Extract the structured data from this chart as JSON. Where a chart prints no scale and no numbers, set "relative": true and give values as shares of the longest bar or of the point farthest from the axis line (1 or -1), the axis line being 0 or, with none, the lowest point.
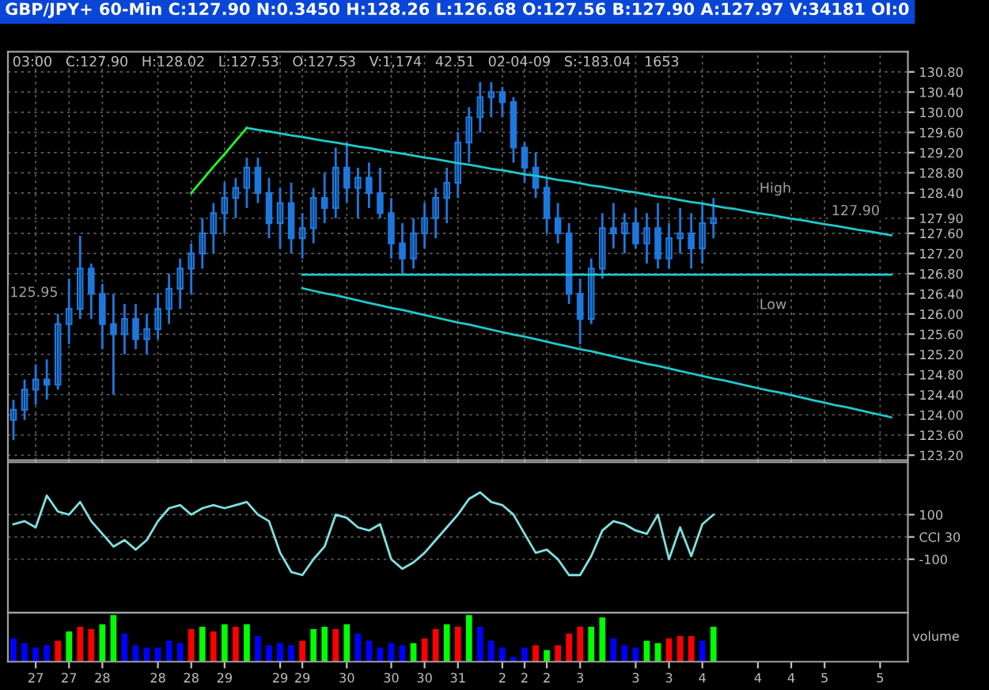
{
  "chart_data": [
    {
      "type": "candlestick",
      "title": "GBP/JPY+ 60-Min C:127.90 N:0.3450 H:128.26 L:126.68 O:127.56 B:127.90 A:127.97 V:34181 OI:0",
      "subtitle": "03:00   C:127.90   H:128.02   L:127.53   O:127.53   V:1,174   42.51   02-04-09   S:-183.04   1653",
      "categories": [
        null,
        null,
        "27",
        null,
        null,
        "27",
        null,
        null,
        "28",
        null,
        null,
        null,
        null,
        "28",
        null,
        null,
        "28",
        null,
        null,
        "29",
        null,
        null,
        null,
        null,
        "29",
        null,
        "29",
        null,
        null,
        null,
        "30",
        null,
        null,
        null,
        "30",
        null,
        null,
        "30",
        null,
        null,
        "31",
        null,
        null,
        null,
        "2",
        null,
        "2",
        null,
        "2",
        null,
        null,
        "3",
        null,
        null,
        null,
        null,
        "3",
        null,
        null,
        "3",
        null,
        null,
        "4",
        null,
        null,
        null,
        null,
        "4",
        null,
        null,
        "4",
        null,
        null,
        "5",
        null,
        null,
        null,
        null,
        "5",
        null,
        null
      ],
      "color": "#1e78dc",
      "ohlc": [
        [
          123.9,
          124.3,
          123.5,
          124.1
        ],
        [
          124.1,
          124.7,
          123.9,
          124.5
        ],
        [
          124.5,
          125.0,
          124.2,
          124.7
        ],
        [
          124.7,
          125.1,
          124.3,
          124.6
        ],
        [
          124.6,
          126.0,
          124.5,
          125.8
        ],
        [
          125.8,
          126.7,
          125.4,
          126.1
        ],
        [
          126.1,
          127.55,
          125.9,
          126.9
        ],
        [
          126.9,
          127.0,
          125.9,
          126.4
        ],
        [
          126.4,
          126.6,
          125.3,
          125.8
        ],
        [
          125.8,
          126.4,
          124.4,
          125.6
        ],
        [
          125.6,
          126.2,
          125.2,
          125.9
        ],
        [
          125.9,
          126.2,
          125.3,
          125.5
        ],
        [
          125.5,
          126.0,
          125.2,
          125.7
        ],
        [
          125.7,
          126.4,
          125.5,
          126.1
        ],
        [
          126.1,
          126.8,
          125.8,
          126.5
        ],
        [
          126.5,
          127.1,
          126.1,
          126.9
        ],
        [
          126.9,
          127.4,
          126.4,
          127.2
        ],
        [
          127.2,
          127.9,
          126.9,
          127.6
        ],
        [
          127.6,
          128.2,
          127.2,
          128.0
        ],
        [
          128.0,
          128.6,
          127.6,
          128.3
        ],
        [
          128.3,
          128.7,
          127.9,
          128.5
        ],
        [
          128.5,
          129.1,
          128.1,
          128.9
        ],
        [
          128.9,
          129.1,
          128.2,
          128.4
        ],
        [
          128.4,
          128.7,
          127.5,
          127.8
        ],
        [
          127.8,
          128.5,
          127.3,
          128.2
        ],
        [
          128.2,
          128.6,
          127.2,
          127.5
        ],
        [
          127.5,
          128.0,
          127.1,
          127.7
        ],
        [
          127.7,
          128.5,
          127.4,
          128.3
        ],
        [
          128.3,
          128.8,
          127.8,
          128.1
        ],
        [
          128.1,
          129.3,
          127.9,
          128.9
        ],
        [
          128.9,
          129.4,
          128.2,
          128.5
        ],
        [
          128.5,
          128.9,
          127.9,
          128.7
        ],
        [
          128.7,
          129.0,
          128.1,
          128.4
        ],
        [
          128.4,
          128.9,
          127.9,
          128.0
        ],
        [
          128.0,
          128.3,
          127.1,
          127.4
        ],
        [
          127.4,
          127.8,
          126.8,
          127.1
        ],
        [
          127.1,
          127.9,
          126.9,
          127.6
        ],
        [
          127.6,
          128.2,
          127.3,
          127.9
        ],
        [
          127.9,
          128.5,
          127.5,
          128.3
        ],
        [
          128.3,
          128.9,
          127.8,
          128.6
        ],
        [
          128.6,
          129.6,
          128.3,
          129.4
        ],
        [
          129.4,
          130.1,
          129.0,
          129.9
        ],
        [
          129.9,
          130.6,
          129.6,
          130.3
        ],
        [
          130.3,
          130.6,
          129.9,
          130.4
        ],
        [
          130.4,
          130.5,
          129.9,
          130.2
        ],
        [
          130.2,
          130.3,
          129.0,
          129.3
        ],
        [
          129.3,
          129.4,
          128.6,
          128.9
        ],
        [
          128.9,
          129.2,
          128.3,
          128.5
        ],
        [
          128.5,
          128.7,
          127.6,
          127.9
        ],
        [
          127.9,
          128.2,
          127.4,
          127.6
        ],
        [
          127.6,
          127.8,
          126.2,
          126.4
        ],
        [
          126.4,
          126.7,
          125.4,
          125.9
        ],
        [
          125.9,
          127.1,
          125.8,
          126.9
        ],
        [
          126.9,
          128.0,
          126.7,
          127.7
        ],
        [
          127.7,
          128.2,
          127.3,
          127.6
        ],
        [
          127.6,
          128.0,
          127.2,
          127.8
        ],
        [
          127.8,
          128.1,
          127.3,
          127.4
        ],
        [
          127.4,
          128.0,
          127.0,
          127.7
        ],
        [
          127.7,
          128.2,
          126.9,
          127.1
        ],
        [
          127.1,
          127.8,
          126.9,
          127.5
        ],
        [
          127.5,
          128.1,
          127.2,
          127.6
        ],
        [
          127.6,
          128.0,
          126.9,
          127.3
        ],
        [
          127.3,
          128.2,
          127.0,
          127.8
        ],
        [
          127.8,
          128.3,
          127.5,
          127.9
        ],
        null,
        null,
        null,
        null,
        null,
        null,
        null,
        null,
        null,
        null,
        null,
        null,
        null,
        null,
        null,
        null,
        null
      ],
      "series": [
        {
          "type": "line",
          "color": "#20c8c8",
          "values": [
            null,
            null,
            null,
            null,
            null,
            null,
            null,
            null,
            null,
            null,
            null,
            null,
            null,
            null,
            null,
            null,
            null,
            null,
            null,
            null,
            null,
            129.69,
            129.65,
            129.62,
            129.58,
            129.54,
            129.51,
            129.47,
            129.43,
            129.4,
            129.36,
            129.32,
            129.29,
            129.25,
            129.21,
            129.18,
            129.14,
            129.1,
            129.07,
            129.03,
            128.99,
            128.96,
            128.92,
            128.88,
            128.85,
            128.81,
            128.77,
            128.74,
            128.7,
            128.66,
            128.63,
            128.59,
            128.55,
            128.52,
            128.48,
            128.44,
            128.41,
            128.37,
            128.33,
            128.3,
            128.26,
            128.22,
            128.19,
            128.15,
            128.11,
            128.08,
            128.04,
            128.0,
            127.97,
            127.93,
            127.89,
            127.86,
            127.82,
            127.78,
            127.75,
            127.71,
            127.67,
            127.64,
            127.6,
            127.56,
            null
          ]
        },
        {
          "type": "line",
          "color": "#20c8c8",
          "values": [
            null,
            null,
            null,
            null,
            null,
            null,
            null,
            null,
            null,
            null,
            null,
            null,
            null,
            null,
            null,
            null,
            null,
            null,
            null,
            null,
            null,
            null,
            null,
            null,
            null,
            null,
            126.51,
            126.46,
            126.41,
            126.37,
            126.32,
            126.27,
            126.22,
            126.17,
            126.12,
            126.08,
            126.03,
            125.98,
            125.93,
            125.88,
            125.83,
            125.79,
            125.74,
            125.69,
            125.64,
            125.59,
            125.55,
            125.5,
            125.45,
            125.4,
            125.35,
            125.3,
            125.26,
            125.21,
            125.16,
            125.11,
            125.06,
            125.01,
            124.97,
            124.92,
            124.87,
            124.82,
            124.77,
            124.72,
            124.68,
            124.63,
            124.58,
            124.53,
            124.48,
            124.44,
            124.39,
            124.34,
            124.29,
            124.24,
            124.19,
            124.15,
            124.1,
            124.05,
            124.0,
            123.95,
            null
          ]
        },
        {
          "type": "line",
          "color": "#20c8c8",
          "values": [
            null,
            null,
            null,
            null,
            null,
            null,
            null,
            null,
            null,
            null,
            null,
            null,
            null,
            null,
            null,
            null,
            null,
            null,
            null,
            null,
            null,
            null,
            null,
            null,
            null,
            null,
            126.78,
            126.78,
            126.78,
            126.78,
            126.78,
            126.78,
            126.78,
            126.78,
            126.78,
            126.78,
            126.78,
            126.78,
            126.78,
            126.78,
            126.78,
            126.78,
            126.78,
            126.78,
            126.78,
            126.78,
            126.78,
            126.78,
            126.78,
            126.78,
            126.78,
            126.78,
            126.78,
            126.78,
            126.78,
            126.78,
            126.78,
            126.78,
            126.78,
            126.78,
            126.78,
            126.78,
            126.78,
            126.78,
            126.78,
            126.78,
            126.78,
            126.78,
            126.78,
            126.78,
            126.78,
            126.78,
            126.78,
            126.78,
            126.78,
            126.78,
            126.78,
            126.78,
            126.78,
            126.78,
            null
          ]
        },
        {
          "type": "line",
          "color": "#20ff20",
          "values": [
            null,
            null,
            null,
            null,
            null,
            null,
            null,
            null,
            null,
            null,
            null,
            null,
            null,
            null,
            null,
            null,
            128.4,
            128.66,
            128.92,
            129.17,
            129.43,
            129.69,
            null,
            null,
            null,
            null,
            null,
            null,
            null,
            null,
            null,
            null,
            null,
            null,
            null,
            null,
            null,
            null,
            null,
            null,
            null,
            null,
            null,
            null,
            null,
            null,
            null,
            null,
            null,
            null,
            null,
            null,
            null,
            null,
            null,
            null,
            null,
            null,
            null,
            null,
            null,
            null,
            null,
            null,
            null,
            null,
            null,
            null,
            null,
            null,
            null,
            null,
            null,
            null,
            null,
            null,
            null,
            null,
            null,
            null,
            null
          ]
        }
      ],
      "annotations": [
        "High",
        "Low",
        "127.90",
        "125.95"
      ],
      "ylim": [
        123.1,
        131.2
      ],
      "yticks": [
        {
          "value": 123.2,
          "label": "123.20"
        },
        {
          "value": 123.6,
          "label": "123.60"
        },
        {
          "value": 124.0,
          "label": "124.00"
        },
        {
          "value": 124.4,
          "label": "124.40"
        },
        {
          "value": 124.8,
          "label": "124.80"
        },
        {
          "value": 125.2,
          "label": "125.20"
        },
        {
          "value": 125.6,
          "label": "125.60"
        },
        {
          "value": 126.0,
          "label": "126.00"
        },
        {
          "value": 126.4,
          "label": "126.40"
        },
        {
          "value": 126.8,
          "label": "126.80"
        },
        {
          "value": 127.2,
          "label": "127.20"
        },
        {
          "value": 127.6,
          "label": "127.60"
        },
        {
          "value": 127.9,
          "label": "127.90"
        },
        {
          "value": 128.4,
          "label": "128.40"
        },
        {
          "value": 128.8,
          "label": "128.80"
        },
        {
          "value": 129.2,
          "label": "129.20"
        },
        {
          "value": 129.6,
          "label": "129.60"
        },
        {
          "value": 130.0,
          "label": "130.00"
        },
        {
          "value": 130.4,
          "label": "130.40"
        },
        {
          "value": 130.8,
          "label": "130.80"
        }
      ],
      "grid": true,
      "tick_labels": "y"
    },
    {
      "type": "line",
      "categories": [
        null,
        null,
        "27",
        null,
        null,
        "27",
        null,
        null,
        "28",
        null,
        null,
        null,
        null,
        "28",
        null,
        null,
        "28",
        null,
        null,
        "29",
        null,
        null,
        null,
        null,
        "29",
        null,
        "29",
        null,
        null,
        null,
        "30",
        null,
        null,
        null,
        "30",
        null,
        null,
        "30",
        null,
        null,
        "31",
        null,
        null,
        null,
        "2",
        null,
        "2",
        null,
        "2",
        null,
        null,
        "3",
        null,
        null,
        null,
        null,
        "3",
        null,
        null,
        "3",
        null,
        null,
        "4",
        null,
        null,
        null,
        null,
        "4",
        null,
        null,
        "4",
        null,
        null,
        "5",
        null,
        null,
        null,
        null,
        "5",
        null,
        null
      ],
      "series": [
        {
          "color": "#80e0e0",
          "values": [
            57,
            71,
            43,
            186,
            114,
            100,
            157,
            71,
            14,
            -43,
            -14,
            -57,
            -14,
            71,
            129,
            143,
            100,
            129,
            143,
            129,
            143,
            157,
            100,
            71,
            -71,
            -157,
            -171,
            -100,
            -43,
            100,
            86,
            43,
            29,
            57,
            -100,
            -143,
            -114,
            -71,
            -14,
            43,
            100,
            171,
            200,
            157,
            143,
            100,
            14,
            -71,
            -57,
            -100,
            -171,
            -171,
            -86,
            29,
            71,
            57,
            29,
            14,
            100,
            -100,
            43,
            -86,
            57,
            100,
            null,
            null,
            null,
            null,
            null,
            null,
            null,
            null,
            null,
            null,
            null,
            null,
            null,
            null,
            null,
            null,
            null
          ]
        }
      ],
      "ylim": [
        -340,
        335
      ],
      "yticks": [
        {
          "value": 100,
          "label": "100"
        },
        {
          "value": 0,
          "label": "CCI 30"
        },
        {
          "value": -100,
          "label": "-100"
        }
      ],
      "grid": "y",
      "tick_labels": "y"
    },
    {
      "type": "bar",
      "relative": true,
      "ylabel": "volume",
      "categories": [
        null,
        null,
        "27",
        null,
        null,
        "27",
        null,
        null,
        "28",
        null,
        null,
        null,
        null,
        "28",
        null,
        null,
        "28",
        null,
        null,
        "29",
        null,
        null,
        null,
        null,
        "29",
        null,
        "29",
        null,
        null,
        null,
        "30",
        null,
        null,
        null,
        "30",
        null,
        null,
        "30",
        null,
        null,
        "31",
        null,
        null,
        null,
        "2",
        null,
        "2",
        null,
        "2",
        null,
        null,
        "3",
        null,
        null,
        null,
        null,
        "3",
        null,
        null,
        "3",
        null,
        null,
        "4",
        null,
        null,
        null,
        null,
        "4",
        null,
        null,
        "4",
        null,
        null,
        "5",
        null,
        null,
        null,
        null,
        "5",
        null,
        null
      ],
      "values": [
        0.5,
        0.4,
        0.3,
        0.35,
        0.45,
        0.65,
        0.75,
        0.7,
        0.8,
        1.0,
        0.6,
        0.35,
        0.3,
        0.3,
        0.45,
        0.4,
        0.7,
        0.75,
        0.65,
        0.8,
        0.75,
        0.8,
        0.55,
        0.35,
        0.4,
        0.35,
        0.45,
        0.7,
        0.75,
        0.7,
        0.8,
        0.6,
        0.45,
        0.3,
        0.4,
        0.35,
        0.4,
        0.5,
        0.7,
        0.8,
        0.75,
        1.0,
        0.75,
        0.45,
        0.3,
        0.1,
        0.3,
        0.35,
        0.25,
        0.35,
        0.6,
        0.75,
        0.75,
        0.95,
        0.5,
        0.35,
        0.3,
        0.45,
        0.4,
        0.5,
        0.55,
        0.55,
        0.45,
        0.75,
        null,
        null,
        null,
        null,
        null,
        null,
        null,
        null,
        null,
        null,
        null,
        null,
        null,
        null,
        null,
        null,
        null
      ],
      "colors": [
        "#0000ff",
        "#0000ff",
        "#0000ff",
        "#0000ff",
        "#ff0000",
        "#00ff00",
        "#ff0000",
        "#ff0000",
        "#00ff00",
        "#00ff00",
        "#0000ff",
        "#0000ff",
        "#0000ff",
        "#0000ff",
        "#0000ff",
        "#0000ff",
        "#ff0000",
        "#00ff00",
        "#ff0000",
        "#00ff00",
        "#ff0000",
        "#00ff00",
        "#0000ff",
        "#0000ff",
        "#0000ff",
        "#0000ff",
        "#ff0000",
        "#00ff00",
        "#00ff00",
        "#ff0000",
        "#00ff00",
        "#0000ff",
        "#0000ff",
        "#0000ff",
        "#0000ff",
        "#0000ff",
        "#00ff00",
        "#ff0000",
        "#ff0000",
        "#00ff00",
        "#ff0000",
        "#00ff00",
        "#0000ff",
        "#0000ff",
        "#0000ff",
        "#0000ff",
        "#0000ff",
        "#ff0000",
        "#00ff00",
        "#ff0000",
        "#ff0000",
        "#ff0000",
        "#00ff00",
        "#00ff00",
        "#0000ff",
        "#0000ff",
        "#0000ff",
        "#00ff00",
        "#00ff00",
        "#ff0000",
        "#ff0000",
        "#ff0000",
        "#0000ff",
        "#00ff00",
        null,
        null,
        null,
        null,
        null,
        null,
        null,
        null,
        null,
        null,
        null,
        null,
        null,
        null,
        null,
        null,
        null
      ],
      "grid": false,
      "tick_labels": "x"
    }
  ]
}
